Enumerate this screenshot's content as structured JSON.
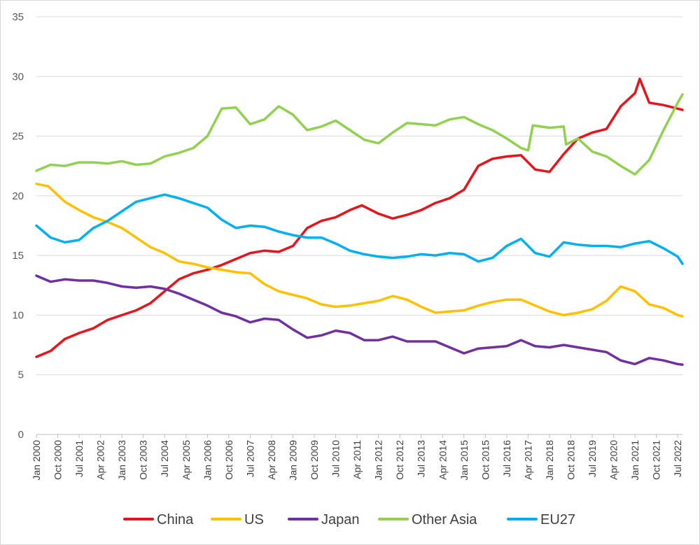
{
  "chart_data": {
    "type": "line",
    "title": "",
    "xlabel": "",
    "ylabel": "",
    "ylim": [
      0,
      35
    ],
    "yticks": [
      0,
      5,
      10,
      15,
      20,
      25,
      30,
      35
    ],
    "grid": "horizontal",
    "legend_position": "bottom",
    "x_tick_labels": [
      "Jan 2000",
      "Oct 2000",
      "Jul 2001",
      "Apr 2002",
      "Jan 2003",
      "Oct 2003",
      "Jul 2004",
      "Apr 2005",
      "Jan 2006",
      "Oct 2006",
      "Jul 2007",
      "Apr 2008",
      "Jan 2009",
      "Oct 2009",
      "Jul 2010",
      "Apr 2011",
      "Jan 2012",
      "Oct 2012",
      "Jul 2013",
      "Apr 2014",
      "Jan 2015",
      "Oct 2015",
      "Jul 2016",
      "Apr 2017",
      "Jan 2018",
      "Oct 2018",
      "Jul 2019",
      "Apr 2020",
      "Jan 2021",
      "Oct 2021",
      "Jul 2022"
    ],
    "x_range": [
      "Jan 2000",
      "Sep 2022"
    ],
    "series": [
      {
        "name": "China",
        "color": "#e8141b",
        "points": [
          [
            "Jan 2000",
            6.5
          ],
          [
            "Jul 2000",
            7.0
          ],
          [
            "Jan 2001",
            8.0
          ],
          [
            "Jul 2001",
            8.5
          ],
          [
            "Jan 2002",
            8.9
          ],
          [
            "Jul 2002",
            9.6
          ],
          [
            "Jan 2003",
            10.0
          ],
          [
            "Jul 2003",
            10.4
          ],
          [
            "Jan 2004",
            11.0
          ],
          [
            "Jul 2004",
            12.0
          ],
          [
            "Jan 2005",
            13.0
          ],
          [
            "Jul 2005",
            13.5
          ],
          [
            "Jan 2006",
            13.8
          ],
          [
            "Jul 2006",
            14.2
          ],
          [
            "Jan 2007",
            14.7
          ],
          [
            "Jul 2007",
            15.2
          ],
          [
            "Jan 2008",
            15.4
          ],
          [
            "Jul 2008",
            15.3
          ],
          [
            "Jan 2009",
            15.8
          ],
          [
            "Jul 2009",
            17.3
          ],
          [
            "Jan 2010",
            17.9
          ],
          [
            "Jul 2010",
            18.2
          ],
          [
            "Jan 2011",
            18.8
          ],
          [
            "Jun 2011",
            19.2
          ],
          [
            "Jan 2012",
            18.5
          ],
          [
            "Jul 2012",
            18.1
          ],
          [
            "Jan 2013",
            18.4
          ],
          [
            "Jul 2013",
            18.8
          ],
          [
            "Jan 2014",
            19.4
          ],
          [
            "Jul 2014",
            19.8
          ],
          [
            "Jan 2015",
            20.5
          ],
          [
            "Jul 2015",
            22.5
          ],
          [
            "Jan 2016",
            23.1
          ],
          [
            "Jul 2016",
            23.3
          ],
          [
            "Jan 2017",
            23.4
          ],
          [
            "Jul 2017",
            22.2
          ],
          [
            "Jan 2018",
            22.0
          ],
          [
            "Jul 2018",
            23.5
          ],
          [
            "Jan 2019",
            24.8
          ],
          [
            "Jul 2019",
            25.3
          ],
          [
            "Jan 2020",
            25.6
          ],
          [
            "Jul 2020",
            27.5
          ],
          [
            "Jan 2021",
            28.6
          ],
          [
            "Mar 2021",
            29.8
          ],
          [
            "Jul 2021",
            27.8
          ],
          [
            "Jan 2022",
            27.6
          ],
          [
            "Jul 2022",
            27.3
          ],
          [
            "Sep 2022",
            27.2
          ]
        ]
      },
      {
        "name": "US",
        "color": "#ffc000",
        "points": [
          [
            "Jan 2000",
            21.0
          ],
          [
            "Jun 2000",
            20.8
          ],
          [
            "Jan 2001",
            19.5
          ],
          [
            "Jul 2001",
            18.8
          ],
          [
            "Jan 2002",
            18.2
          ],
          [
            "Jul 2002",
            17.8
          ],
          [
            "Jan 2003",
            17.3
          ],
          [
            "Jul 2003",
            16.5
          ],
          [
            "Jan 2004",
            15.7
          ],
          [
            "Jul 2004",
            15.2
          ],
          [
            "Jan 2005",
            14.5
          ],
          [
            "Jul 2005",
            14.3
          ],
          [
            "Jan 2006",
            14.0
          ],
          [
            "Jul 2006",
            13.8
          ],
          [
            "Jan 2007",
            13.6
          ],
          [
            "Jul 2007",
            13.5
          ],
          [
            "Jan 2008",
            12.6
          ],
          [
            "Jul 2008",
            12.0
          ],
          [
            "Jan 2009",
            11.7
          ],
          [
            "Jul 2009",
            11.4
          ],
          [
            "Jan 2010",
            10.9
          ],
          [
            "Jul 2010",
            10.7
          ],
          [
            "Jan 2011",
            10.8
          ],
          [
            "Jul 2011",
            11.0
          ],
          [
            "Jan 2012",
            11.2
          ],
          [
            "Jul 2012",
            11.6
          ],
          [
            "Jan 2013",
            11.3
          ],
          [
            "Jul 2013",
            10.7
          ],
          [
            "Jan 2014",
            10.2
          ],
          [
            "Jul 2014",
            10.3
          ],
          [
            "Jan 2015",
            10.4
          ],
          [
            "Jul 2015",
            10.8
          ],
          [
            "Jan 2016",
            11.1
          ],
          [
            "Jul 2016",
            11.3
          ],
          [
            "Jan 2017",
            11.3
          ],
          [
            "Jul 2017",
            10.8
          ],
          [
            "Jan 2018",
            10.3
          ],
          [
            "Jul 2018",
            10.0
          ],
          [
            "Jan 2019",
            10.2
          ],
          [
            "Jul 2019",
            10.5
          ],
          [
            "Jan 2020",
            11.2
          ],
          [
            "Jul 2020",
            12.4
          ],
          [
            "Jan 2021",
            12.0
          ],
          [
            "Jul 2021",
            10.9
          ],
          [
            "Jan 2022",
            10.6
          ],
          [
            "Jul 2022",
            10.0
          ],
          [
            "Sep 2022",
            9.9
          ]
        ]
      },
      {
        "name": "Japan",
        "color": "#7030a0",
        "points": [
          [
            "Jan 2000",
            13.3
          ],
          [
            "Jul 2000",
            12.8
          ],
          [
            "Jan 2001",
            13.0
          ],
          [
            "Jul 2001",
            12.9
          ],
          [
            "Jan 2002",
            12.9
          ],
          [
            "Jul 2002",
            12.7
          ],
          [
            "Jan 2003",
            12.4
          ],
          [
            "Jul 2003",
            12.3
          ],
          [
            "Jan 2004",
            12.4
          ],
          [
            "Jul 2004",
            12.2
          ],
          [
            "Jan 2005",
            11.8
          ],
          [
            "Jul 2005",
            11.3
          ],
          [
            "Jan 2006",
            10.8
          ],
          [
            "Jul 2006",
            10.2
          ],
          [
            "Jan 2007",
            9.9
          ],
          [
            "Jul 2007",
            9.4
          ],
          [
            "Jan 2008",
            9.7
          ],
          [
            "Jul 2008",
            9.6
          ],
          [
            "Jan 2009",
            8.8
          ],
          [
            "Jul 2009",
            8.1
          ],
          [
            "Jan 2010",
            8.3
          ],
          [
            "Jul 2010",
            8.7
          ],
          [
            "Jan 2011",
            8.5
          ],
          [
            "Jul 2011",
            7.9
          ],
          [
            "Jan 2012",
            7.9
          ],
          [
            "Jul 2012",
            8.2
          ],
          [
            "Jan 2013",
            7.8
          ],
          [
            "Jul 2013",
            7.8
          ],
          [
            "Jan 2014",
            7.8
          ],
          [
            "Jul 2014",
            7.3
          ],
          [
            "Jan 2015",
            6.8
          ],
          [
            "Jul 2015",
            7.2
          ],
          [
            "Jan 2016",
            7.3
          ],
          [
            "Jul 2016",
            7.4
          ],
          [
            "Jan 2017",
            7.9
          ],
          [
            "Jul 2017",
            7.4
          ],
          [
            "Jan 2018",
            7.3
          ],
          [
            "Jul 2018",
            7.5
          ],
          [
            "Jan 2019",
            7.3
          ],
          [
            "Jul 2019",
            7.1
          ],
          [
            "Jan 2020",
            6.9
          ],
          [
            "Jul 2020",
            6.2
          ],
          [
            "Jan 2021",
            5.9
          ],
          [
            "Jul 2021",
            6.4
          ],
          [
            "Jan 2022",
            6.2
          ],
          [
            "Jul 2022",
            5.9
          ],
          [
            "Sep 2022",
            5.85
          ]
        ]
      },
      {
        "name": "Other Asia",
        "color": "#92d050",
        "points": [
          [
            "Jan 2000",
            22.1
          ],
          [
            "Jul 2000",
            22.6
          ],
          [
            "Jan 2001",
            22.5
          ],
          [
            "Jul 2001",
            22.8
          ],
          [
            "Jan 2002",
            22.8
          ],
          [
            "Jul 2002",
            22.7
          ],
          [
            "Jan 2003",
            22.9
          ],
          [
            "Jul 2003",
            22.6
          ],
          [
            "Jan 2004",
            22.7
          ],
          [
            "Jul 2004",
            23.3
          ],
          [
            "Jan 2005",
            23.6
          ],
          [
            "Jul 2005",
            24.0
          ],
          [
            "Jan 2006",
            25.0
          ],
          [
            "Jul 2006",
            27.3
          ],
          [
            "Jan 2007",
            27.4
          ],
          [
            "Jul 2007",
            26.0
          ],
          [
            "Jan 2008",
            26.4
          ],
          [
            "Jul 2008",
            27.5
          ],
          [
            "Jan 2009",
            26.8
          ],
          [
            "Jul 2009",
            25.5
          ],
          [
            "Jan 2010",
            25.8
          ],
          [
            "Jul 2010",
            26.3
          ],
          [
            "Jan 2011",
            25.5
          ],
          [
            "Jul 2011",
            24.7
          ],
          [
            "Jan 2012",
            24.4
          ],
          [
            "Jul 2012",
            25.3
          ],
          [
            "Jan 2013",
            26.1
          ],
          [
            "Jul 2013",
            26.0
          ],
          [
            "Jan 2014",
            25.9
          ],
          [
            "Jul 2014",
            26.4
          ],
          [
            "Jan 2015",
            26.6
          ],
          [
            "Jul 2015",
            26.0
          ],
          [
            "Jan 2016",
            25.5
          ],
          [
            "Jul 2016",
            24.8
          ],
          [
            "Jan 2017",
            24.0
          ],
          [
            "Apr 2017",
            23.8
          ],
          [
            "Jun 2017",
            25.9
          ],
          [
            "Jan 2018",
            25.7
          ],
          [
            "Jul 2018",
            25.8
          ],
          [
            "Aug 2018",
            24.3
          ],
          [
            "Jan 2019",
            24.8
          ],
          [
            "Jul 2019",
            23.7
          ],
          [
            "Jan 2020",
            23.3
          ],
          [
            "Jul 2020",
            22.5
          ],
          [
            "Jan 2021",
            21.8
          ],
          [
            "Jul 2021",
            23.0
          ],
          [
            "Jan 2022",
            25.5
          ],
          [
            "Jul 2022",
            27.8
          ],
          [
            "Sep 2022",
            28.5
          ]
        ]
      },
      {
        "name": "EU27",
        "color": "#00b0f0",
        "points": [
          [
            "Jan 2000",
            17.5
          ],
          [
            "Jul 2000",
            16.5
          ],
          [
            "Jan 2001",
            16.1
          ],
          [
            "Jul 2001",
            16.3
          ],
          [
            "Jan 2002",
            17.3
          ],
          [
            "Jul 2002",
            17.9
          ],
          [
            "Jan 2003",
            18.7
          ],
          [
            "Jul 2003",
            19.5
          ],
          [
            "Jan 2004",
            19.8
          ],
          [
            "Jul 2004",
            20.1
          ],
          [
            "Jan 2005",
            19.8
          ],
          [
            "Jul 2005",
            19.4
          ],
          [
            "Jan 2006",
            19.0
          ],
          [
            "Jul 2006",
            18.0
          ],
          [
            "Jan 2007",
            17.3
          ],
          [
            "Jul 2007",
            17.5
          ],
          [
            "Jan 2008",
            17.4
          ],
          [
            "Jul 2008",
            17.0
          ],
          [
            "Jan 2009",
            16.7
          ],
          [
            "Jul 2009",
            16.5
          ],
          [
            "Jan 2010",
            16.5
          ],
          [
            "Jul 2010",
            16.0
          ],
          [
            "Jan 2011",
            15.4
          ],
          [
            "Jul 2011",
            15.1
          ],
          [
            "Jan 2012",
            14.9
          ],
          [
            "Jul 2012",
            14.8
          ],
          [
            "Jan 2013",
            14.9
          ],
          [
            "Jul 2013",
            15.1
          ],
          [
            "Jan 2014",
            15.0
          ],
          [
            "Jul 2014",
            15.2
          ],
          [
            "Jan 2015",
            15.1
          ],
          [
            "Jul 2015",
            14.5
          ],
          [
            "Jan 2016",
            14.8
          ],
          [
            "Jul 2016",
            15.8
          ],
          [
            "Jan 2017",
            16.4
          ],
          [
            "Jul 2017",
            15.2
          ],
          [
            "Jan 2018",
            14.9
          ],
          [
            "Jul 2018",
            16.1
          ],
          [
            "Jan 2019",
            15.9
          ],
          [
            "Jul 2019",
            15.8
          ],
          [
            "Jan 2020",
            15.8
          ],
          [
            "Jul 2020",
            15.7
          ],
          [
            "Jan 2021",
            16.0
          ],
          [
            "Jul 2021",
            16.2
          ],
          [
            "Jan 2022",
            15.6
          ],
          [
            "Jul 2022",
            14.9
          ],
          [
            "Sep 2022",
            14.3
          ]
        ]
      }
    ]
  }
}
